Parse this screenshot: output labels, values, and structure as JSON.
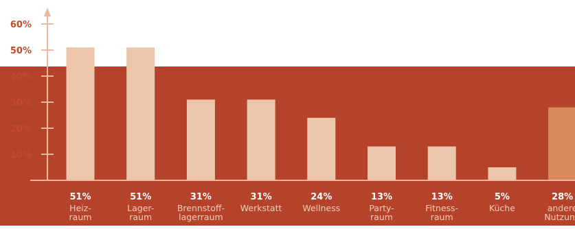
{
  "chart_data": {
    "type": "bar",
    "ylim": [
      0,
      60
    ],
    "y_ticks": [
      "10%",
      "20%",
      "30%",
      "40%",
      "50%",
      "60%"
    ],
    "grid": false,
    "categories": [
      [
        "Heiz-",
        "raum"
      ],
      [
        "Lager-",
        "raum"
      ],
      [
        "Brennstoff-",
        "lagerraum"
      ],
      [
        "Werkstatt"
      ],
      [
        "Wellness"
      ],
      [
        "Party-",
        "raum"
      ],
      [
        "Fitness-",
        "raum"
      ],
      [
        "Küche"
      ],
      [
        "andere",
        "Nutzung"
      ]
    ],
    "values": [
      51,
      51,
      31,
      31,
      24,
      13,
      13,
      5,
      28
    ],
    "value_labels": [
      "51%",
      "51%",
      "31%",
      "31%",
      "24%",
      "13%",
      "13%",
      "5%",
      "28%"
    ],
    "colors": {
      "background_band": "#b5432c",
      "bar": "#ecc5aa",
      "bar_highlight": "#d9895e",
      "axis": "#ecb79a",
      "tick_label": "#c24a2c",
      "value_label": "#ffffff",
      "category_label": "#f2cdb8"
    },
    "highlight_index": 8
  }
}
